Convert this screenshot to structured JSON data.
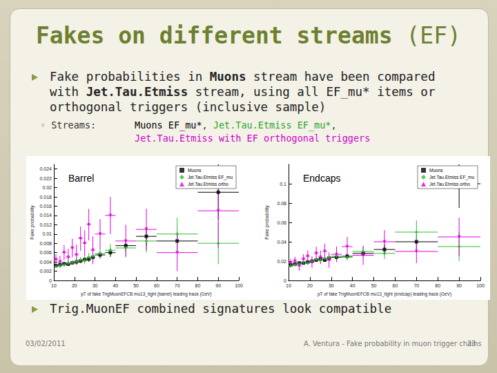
{
  "slide": {
    "title": {
      "bold": "Fakes on different streams",
      "normal": "(EF)"
    },
    "bullet_1": [
      {
        "text": "Fake probabilities in "
      },
      {
        "text": "Muons",
        "bold": true
      },
      {
        "text": " stream have been compared with "
      },
      {
        "text": "Jet.Tau.Etmiss",
        "bold": true
      },
      {
        "text": " stream, using all EF_mu* items or orthogonal triggers (inclusive sample)"
      }
    ],
    "streams": {
      "label": "Streams:",
      "items": [
        {
          "text": "Muons EF_mu*",
          "color": "#000000"
        },
        {
          "text": ", "
        },
        {
          "text": "Jet.Tau.Etmiss EF_mu*",
          "color": "#2aa52a"
        },
        {
          "text": ", "
        },
        {
          "text": "Jet.Tau.Etmiss with EF orthogonal triggers",
          "color": "#cc00cc"
        }
      ]
    },
    "bullet_2": [
      {
        "text": "Trig.MuonEF combined signatures look compatible"
      }
    ],
    "footer": {
      "date": "03/02/2011",
      "text": "A. Ventura - Fake probability in muon trigger chains",
      "page": "23"
    }
  },
  "chart_data": [
    {
      "type": "scatter",
      "title": "Barrel",
      "x_label": "pT of fake TrigMuonEFCB mu13_tight (barrel) leading track (GeV)",
      "y_label": "Fake probability",
      "xlim": [
        10,
        100
      ],
      "xticks": [
        10,
        20,
        30,
        40,
        50,
        60,
        70,
        80,
        90,
        100
      ],
      "ylim": [
        0,
        0.025
      ],
      "yticks": [
        0,
        0.002,
        0.004,
        0.006,
        0.008,
        0.01,
        0.012,
        0.014,
        0.016,
        0.018,
        0.02,
        0.022,
        0.024
      ],
      "grid": false,
      "legend": "upper right",
      "series": [
        {
          "name": "Muons",
          "color": "#000000",
          "marker": "square",
          "x": [
            11,
            13,
            15,
            17,
            19,
            21,
            23,
            25,
            27,
            29,
            32.5,
            37.5,
            45,
            55,
            70,
            90
          ],
          "x_err": [
            1,
            1,
            1,
            1,
            1,
            1,
            1,
            1,
            1,
            1,
            2.5,
            2.5,
            5,
            5,
            10,
            10
          ],
          "values": [
            0.0032,
            0.0034,
            0.0036,
            0.0035,
            0.0038,
            0.004,
            0.0042,
            0.0045,
            0.0046,
            0.005,
            0.0055,
            0.006,
            0.0075,
            0.0095,
            0.0085,
            0.019
          ],
          "y_err": [
            0.0002,
            0.0002,
            0.0003,
            0.0003,
            0.0003,
            0.0004,
            0.0004,
            0.0005,
            0.0006,
            0.0007,
            0.0007,
            0.0009,
            0.0012,
            0.002,
            0.002,
            0.006
          ]
        },
        {
          "name": "Jet.Tau.Etmiss EF_mu",
          "color": "#33bb33",
          "marker": "diamond",
          "x": [
            11,
            13,
            15,
            17,
            19,
            21,
            23,
            25,
            27,
            29,
            32.5,
            37.5,
            45,
            55,
            70,
            90
          ],
          "x_err": [
            1,
            1,
            1,
            1,
            1,
            1,
            1,
            1,
            1,
            1,
            2.5,
            2.5,
            5,
            5,
            10,
            10
          ],
          "values": [
            0.003,
            0.0032,
            0.0034,
            0.0037,
            0.0039,
            0.0041,
            0.0044,
            0.0043,
            0.005,
            0.0052,
            0.0058,
            0.0065,
            0.007,
            0.0085,
            0.01,
            0.008
          ],
          "y_err": [
            0.0003,
            0.0003,
            0.0004,
            0.0005,
            0.0005,
            0.0006,
            0.0007,
            0.0008,
            0.0009,
            0.001,
            0.0011,
            0.0014,
            0.0018,
            0.0025,
            0.0035,
            0.0045
          ]
        },
        {
          "name": "Jet.Tau.Etmiss ortho",
          "color": "#dd00dd",
          "marker": "triangle-down",
          "x": [
            11,
            13,
            15,
            17,
            19,
            21,
            23,
            25,
            27,
            29,
            32.5,
            37.5,
            45,
            55,
            70,
            90
          ],
          "x_err": [
            1,
            1,
            1,
            1,
            1,
            1,
            1,
            1,
            1,
            1,
            2.5,
            2.5,
            5,
            5,
            10,
            10
          ],
          "values": [
            0.0045,
            0.004,
            0.006,
            0.005,
            0.007,
            0.0055,
            0.009,
            0.008,
            0.012,
            0.0065,
            0.01,
            0.014,
            0.0085,
            0.011,
            0.006,
            0.015
          ],
          "y_err": [
            0.0012,
            0.0013,
            0.0016,
            0.0018,
            0.002,
            0.0022,
            0.0026,
            0.0028,
            0.0034,
            0.003,
            0.0032,
            0.004,
            0.0035,
            0.0045,
            0.004,
            0.008
          ]
        }
      ]
    },
    {
      "type": "scatter",
      "title": "Endcaps",
      "x_label": "pT of fake TrigMuonEFCB mu13_tight (endcap) leading track (GeV)",
      "y_label": "Fake probability",
      "xlim": [
        10,
        100
      ],
      "xticks": [
        10,
        20,
        30,
        40,
        50,
        60,
        70,
        80,
        90,
        100
      ],
      "ylim": [
        0,
        0.12
      ],
      "yticks": [
        0,
        0.02,
        0.04,
        0.06,
        0.08,
        0.1
      ],
      "grid": false,
      "legend": "upper right",
      "series": [
        {
          "name": "Muons",
          "color": "#000000",
          "marker": "square",
          "x": [
            11,
            13,
            15,
            17,
            19,
            21,
            23,
            25,
            27,
            29,
            32.5,
            37.5,
            45,
            55,
            70,
            90
          ],
          "x_err": [
            1,
            1,
            1,
            1,
            1,
            1,
            1,
            1,
            1,
            1,
            2.5,
            2.5,
            5,
            5,
            10,
            10
          ],
          "values": [
            0.016,
            0.017,
            0.018,
            0.018,
            0.019,
            0.02,
            0.021,
            0.022,
            0.021,
            0.023,
            0.024,
            0.025,
            0.028,
            0.032,
            0.04,
            0.1
          ],
          "y_err": [
            0.001,
            0.001,
            0.001,
            0.0012,
            0.0013,
            0.0014,
            0.0015,
            0.0017,
            0.0018,
            0.002,
            0.002,
            0.0025,
            0.003,
            0.005,
            0.008,
            0.025
          ]
        },
        {
          "name": "Jet.Tau.Etmiss EF_mu",
          "color": "#33bb33",
          "marker": "diamond",
          "x": [
            11,
            13,
            15,
            17,
            19,
            21,
            23,
            25,
            27,
            29,
            32.5,
            37.5,
            45,
            55,
            70,
            90
          ],
          "x_err": [
            1,
            1,
            1,
            1,
            1,
            1,
            1,
            1,
            1,
            1,
            2.5,
            2.5,
            5,
            5,
            10,
            10
          ],
          "values": [
            0.015,
            0.016,
            0.017,
            0.019,
            0.018,
            0.02,
            0.022,
            0.021,
            0.023,
            0.024,
            0.025,
            0.024,
            0.03,
            0.028,
            0.05,
            0.035
          ],
          "y_err": [
            0.0015,
            0.0016,
            0.0017,
            0.002,
            0.002,
            0.0022,
            0.0025,
            0.0026,
            0.003,
            0.0032,
            0.0033,
            0.0035,
            0.005,
            0.006,
            0.012,
            0.015
          ]
        },
        {
          "name": "Jet.Tau.Etmiss ortho",
          "color": "#dd00dd",
          "marker": "triangle-down",
          "x": [
            11,
            13,
            15,
            17,
            19,
            21,
            23,
            25,
            27,
            29,
            32.5,
            37.5,
            45,
            55,
            70,
            90
          ],
          "x_err": [
            1,
            1,
            1,
            1,
            1,
            1,
            1,
            1,
            1,
            1,
            2.5,
            2.5,
            5,
            5,
            10,
            10
          ],
          "values": [
            0.018,
            0.02,
            0.015,
            0.022,
            0.025,
            0.019,
            0.028,
            0.024,
            0.03,
            0.021,
            0.027,
            0.035,
            0.026,
            0.04,
            0.03,
            0.045
          ],
          "y_err": [
            0.004,
            0.0045,
            0.005,
            0.005,
            0.006,
            0.006,
            0.007,
            0.007,
            0.008,
            0.008,
            0.008,
            0.01,
            0.01,
            0.012,
            0.012,
            0.02
          ]
        }
      ]
    }
  ]
}
